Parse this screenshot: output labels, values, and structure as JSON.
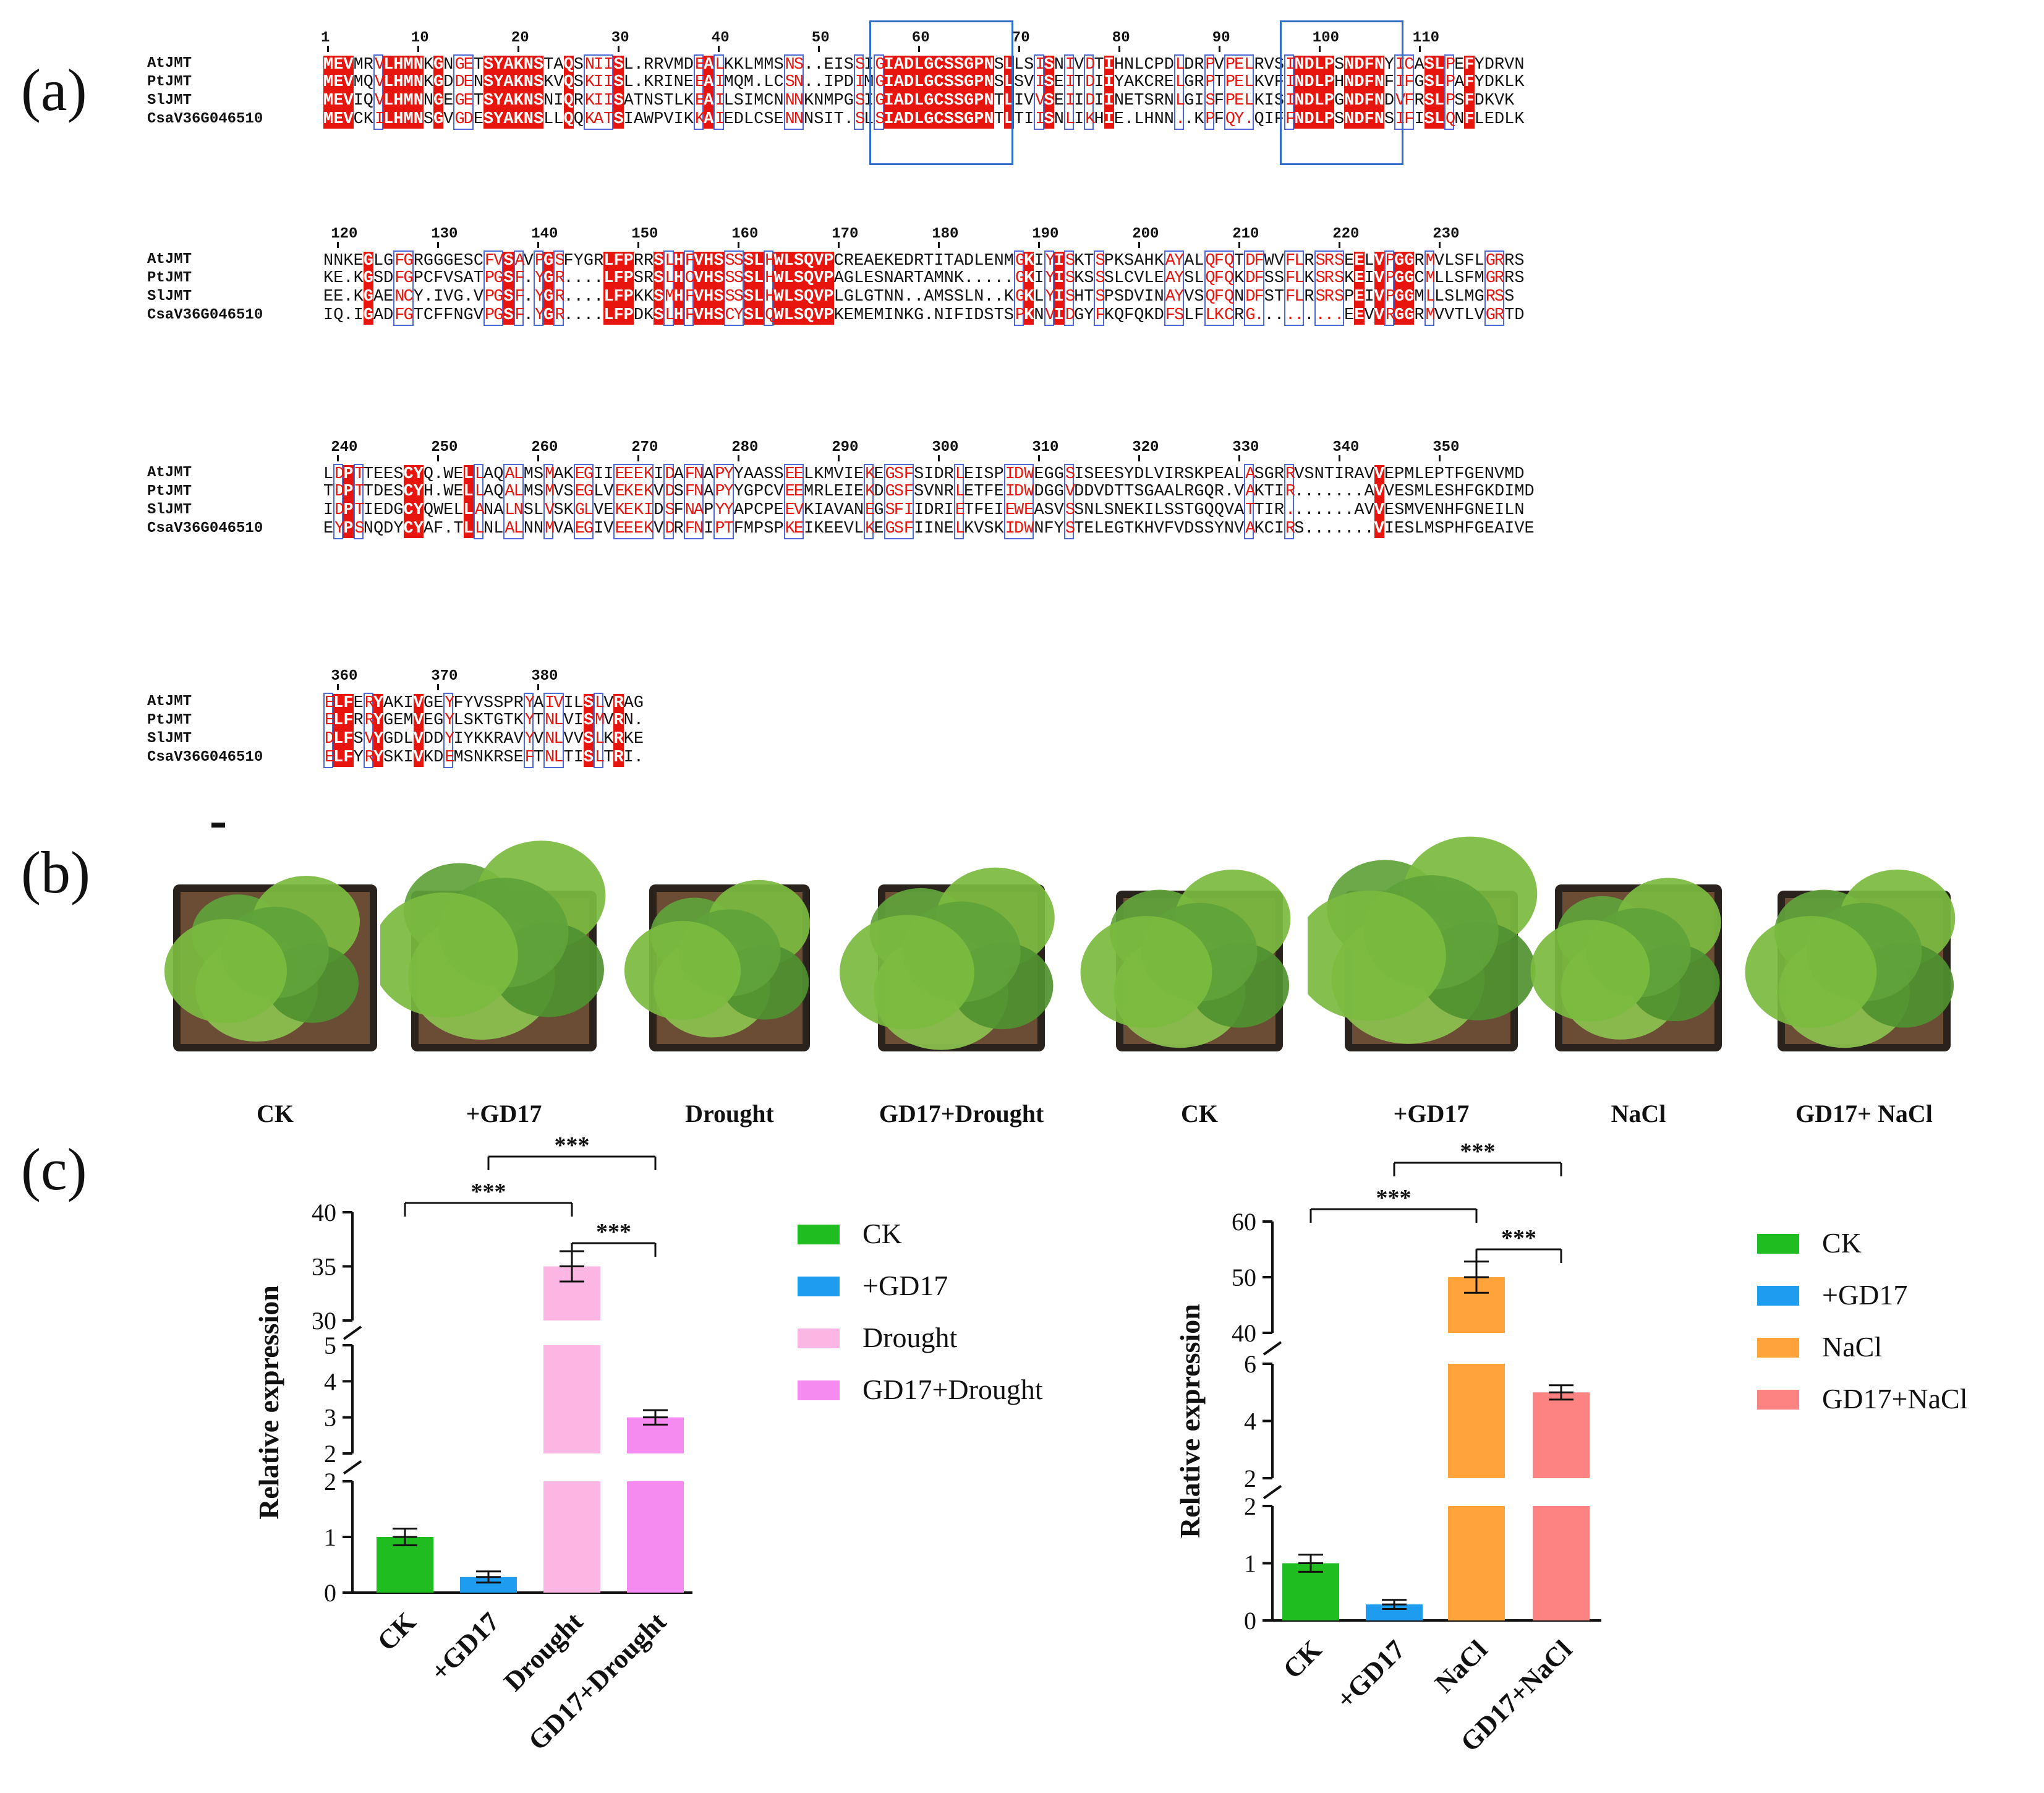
{
  "panels": {
    "a": "(a)",
    "b": "(b)",
    "c": "(c)"
  },
  "alignment": {
    "names": [
      "AtJMT",
      "PtJMT",
      "SlJMT",
      "CsaV36G046510"
    ],
    "blocks": [
      {
        "ruler": [
          "1",
          "10",
          "20",
          "30",
          "40",
          "50",
          "60",
          "70",
          "80",
          "90",
          "100",
          "110"
        ],
        "rows": [
          "MEVMRVLHMNKGNGETSYAKNSTAQSNIISL.RRVMDEALKKLMMSNS..EISSIGIADLGCSSGPNSLLSISNIVDTIHNLCPDLDRPVPELRVSINDLPSNDFNYICASLPEFYDRVN",
          "MEVMQVLHMNKGDDENSYAKNSKVQSKIISL.KRINEEAIMQM.LCSN..IPDIMGIADLGCSSGPNSLSVISEITDIIYAKCRELGRPTPELKVFINDLPHNDFNFIFGSLPAFYDKLK",
          "MEVIQVLHMNNGEGETSYAKNSNIQRKIISATNSTLKEAILSIMCNNNKNMPGSIGIADLGCSSGPNTLIVVSEIIDIINETSRNLGISFPELKISINDLPGNDFNDVFRSLPSFDKVK",
          "MEVCKILHMNSGVGDESYAKNSLLQQKATSIAWPVIKKAIEDLCSENNNSIT.SLSIADLGCSSGPNTLTIISNLIKHIE.LHNN..KPFQY.QIFFNDLPSNDFNSIFISLQNFLEDLK"
        ]
      },
      {
        "ruler": [
          "120",
          "130",
          "140",
          "150",
          "160",
          "170",
          "180",
          "190",
          "200",
          "210",
          "220",
          "230"
        ],
        "rows": [
          "NNKEGLGFGRGGGESCFVSAVPGSFYGRLFPRRSLHFVHSSSSLHWLSQVPCREAEKEDRTITADLENMGKIYISKTSPKSAHKAYALQFQTDFWVFLRSRSEELVPGGRMVLSFLGRRS",
          "KE.KGSDFGPCFVSATPGSF.YGR....LFPSRSLHCVHSSSSLHWLSQVPAGLESNARTAMNK.....GKIYISKSSSLCVLEAYSLQFQKDFSSFLKSRSKEIVPGGCMLLSFMGRRS",
          "EE.KGAENCY.IVG.VPGSF.YGR....LFPKKSMHFVHSSSSLHWLSQVPLGLGTNN..AMSSLN..KGKLYISHTSPSDVINAYVSQFQNDFSTFLRSRSPEIVPGGMLLSLMGRSS",
          "IQ.IGADFGTCFFNGVPGSF.YGR....LFPDKSLHFVHSCYSLQWLSQVPKEMEMINKG.NIFIDSTSPKNVIDGYFKQFQKDFSLFLKCRG.........EEVVRGGRMVVTLVGRTD"
        ]
      },
      {
        "ruler": [
          "240",
          "250",
          "260",
          "270",
          "280",
          "290",
          "300",
          "310",
          "320",
          "330",
          "340",
          "350"
        ],
        "rows": [
          "LDPTTEESCYQ.WELLAQALMSMAKEGIIEEEKIDAFNAPYYAASSEELKMVIEKEGSFSIDRLEISPIDWEGGSISEESYDLVIRSKPEALASGRRVSNTIRAVVEPMLEPTFGENVMD",
          "TDPTTDESCYH.WELLAQALMSMVSEGLVEKEKVDSFNAPYYGPCVEEMRLEIEKDGSFSVNRLETFEIDWDGGVDDVDTTSGAALRGQR.VAKTIR.......AVVESMLESHFGKDIMD",
          "IDPTIEDGCYQWELLANALNSLVSKGLVEKEKIDSFNAPYYAPCPEEVKIAVANEGSFIIDRIETFEIEWEASVSSNLSNEKILSSTGQQVATTIR.......AVVESMVENHFGNEILN",
          "EYPSNQDYCYAF.TLLNLALNNMVAEGIVEEEKVDRFNIPTFMPSPKEIKEEVLKEGSFIINELKVSKIDWNFYSTELEGTKHVFVDSSYNVAKCIRS.......VIESLMSPHFGEAIVE"
        ]
      },
      {
        "ruler": [
          "360",
          "370",
          "380"
        ],
        "rows": [
          "ELFERYAKIVGEYFYVSSPRYAIVILSLVRAG",
          "ELFRRYGEMVEGYLSKTGTKYTNLVISMVRN.",
          "DLFSVYGDLVDDYIYKKRAVYVNLVVSLKRKE",
          "ELFYRYSKIVKDEMSNKRSEFTNLTISLTRI."
        ]
      }
    ],
    "motif_1": "IADLGCSSGPN",
    "motif_2": "NDLPSNDFN"
  },
  "plants_panel": {
    "labels": [
      "CK",
      "+GD17",
      "Drought",
      "GD17+Drought",
      "CK",
      "+GD17",
      "NaCl",
      "GD17+ NaCl"
    ]
  },
  "chart_data": [
    {
      "type": "bar",
      "title": "",
      "ylabel": "Relative expression",
      "categories": [
        "CK",
        "+GD17",
        "Drought",
        "GD17+Drought"
      ],
      "values": [
        1.0,
        0.28,
        35.0,
        3.0
      ],
      "errors": [
        0.15,
        0.1,
        1.4,
        0.2
      ],
      "colors": [
        "#1fbd1f",
        "#1e9df0",
        "#fbb6e4",
        "#f58af0"
      ],
      "axis_segments": [
        {
          "range": [
            0,
            2
          ],
          "ticks": [
            "0",
            "1",
            "2"
          ]
        },
        {
          "range": [
            2,
            5
          ],
          "ticks": [
            "2",
            "3",
            "4",
            "5"
          ]
        },
        {
          "range": [
            30,
            40
          ],
          "ticks": [
            "30",
            "35",
            "40"
          ]
        }
      ],
      "significance": [
        {
          "pair": [
            "CK",
            "Drought"
          ],
          "label": "***"
        },
        {
          "pair": [
            "+GD17",
            "GD17+Drought"
          ],
          "label": "***"
        },
        {
          "pair": [
            "Drought",
            "GD17+Drought"
          ],
          "label": "***"
        }
      ],
      "legend": [
        "CK",
        "+GD17",
        "Drought",
        "GD17+Drought"
      ]
    },
    {
      "type": "bar",
      "title": "",
      "ylabel": "Relative expression",
      "categories": [
        "CK",
        "+GD17",
        "NaCl",
        "GD17+NaCl"
      ],
      "values": [
        1.0,
        0.28,
        50.0,
        5.0
      ],
      "errors": [
        0.15,
        0.08,
        2.8,
        0.25
      ],
      "colors": [
        "#1fbd1f",
        "#1e9df0",
        "#ffa33a",
        "#fd8383"
      ],
      "axis_segments": [
        {
          "range": [
            0,
            2
          ],
          "ticks": [
            "0",
            "1",
            "2"
          ]
        },
        {
          "range": [
            2,
            6
          ],
          "ticks": [
            "2",
            "4",
            "6"
          ]
        },
        {
          "range": [
            40,
            60
          ],
          "ticks": [
            "40",
            "50",
            "60"
          ]
        }
      ],
      "significance": [
        {
          "pair": [
            "CK",
            "NaCl"
          ],
          "label": "***"
        },
        {
          "pair": [
            "+GD17",
            "GD17+NaCl"
          ],
          "label": "***"
        },
        {
          "pair": [
            "NaCl",
            "GD17+NaCl"
          ],
          "label": "***"
        }
      ],
      "legend": [
        "CK",
        "+GD17",
        "NaCl",
        "GD17+NaCl"
      ]
    }
  ]
}
